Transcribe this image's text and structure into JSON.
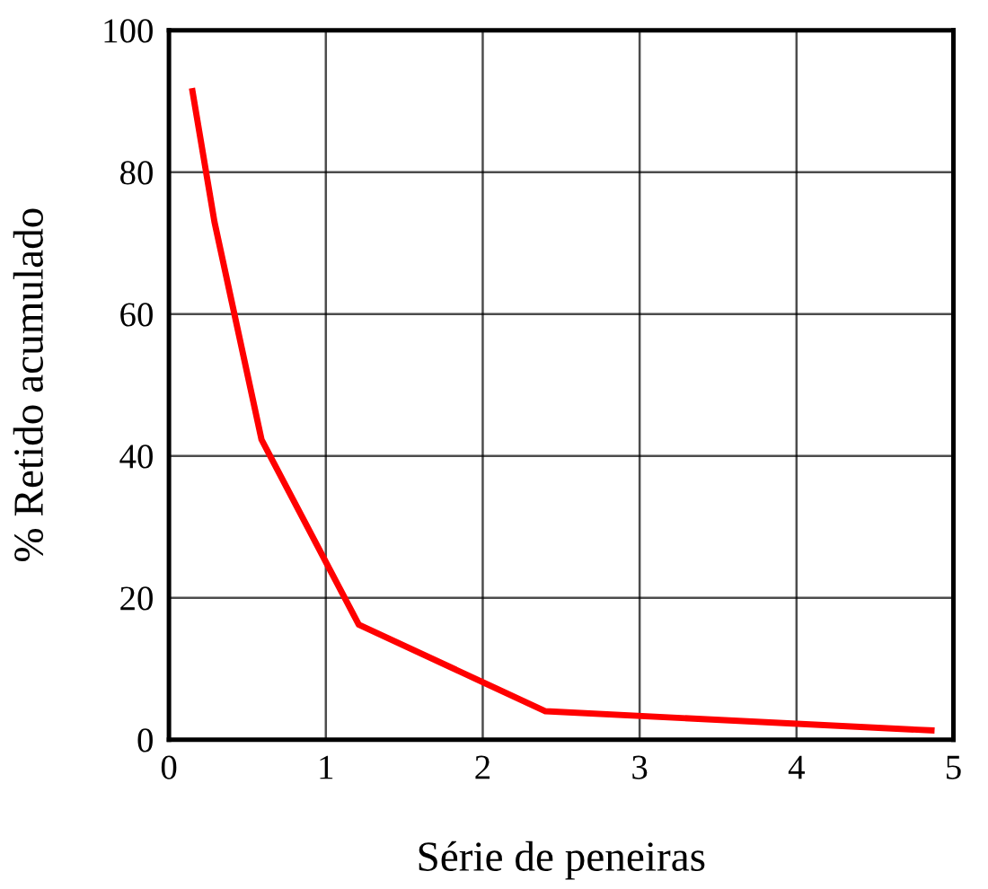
{
  "chart_data": {
    "type": "line",
    "xlabel": "Série de peneiras",
    "ylabel": "% Retido acumulado",
    "x": [
      0.15,
      0.29,
      0.59,
      1.21,
      2.4,
      4.86
    ],
    "series": [
      {
        "color": "#ff0000",
        "values": [
          91.4,
          73,
          42.3,
          16.2,
          4,
          1.3
        ]
      }
    ],
    "xlim": [
      0,
      5
    ],
    "xticks": [
      0,
      1,
      2,
      3,
      4,
      5
    ],
    "ylim": [
      0,
      100
    ],
    "yticks": [
      0,
      20,
      40,
      60,
      80,
      100
    ],
    "grid": true,
    "marker": "none",
    "line_style": "solid",
    "legend": false
  }
}
